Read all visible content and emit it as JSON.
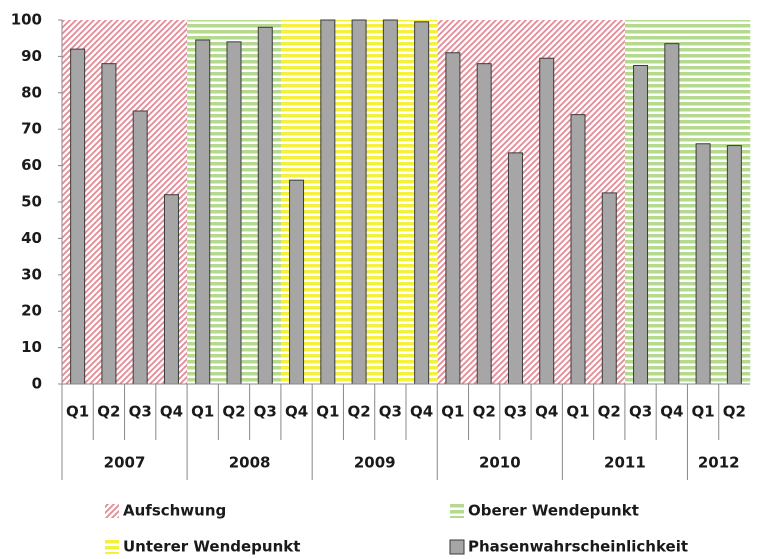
{
  "chart_data": {
    "type": "bar",
    "categories": [
      [
        "2007",
        "Q1"
      ],
      [
        "2007",
        "Q2"
      ],
      [
        "2007",
        "Q3"
      ],
      [
        "2007",
        "Q4"
      ],
      [
        "2008",
        "Q1"
      ],
      [
        "2008",
        "Q2"
      ],
      [
        "2008",
        "Q3"
      ],
      [
        "2008",
        "Q4"
      ],
      [
        "2009",
        "Q1"
      ],
      [
        "2009",
        "Q2"
      ],
      [
        "2009",
        "Q3"
      ],
      [
        "2009",
        "Q4"
      ],
      [
        "2010",
        "Q1"
      ],
      [
        "2010",
        "Q2"
      ],
      [
        "2010",
        "Q3"
      ],
      [
        "2010",
        "Q4"
      ],
      [
        "2011",
        "Q1"
      ],
      [
        "2011",
        "Q2"
      ],
      [
        "2011",
        "Q3"
      ],
      [
        "2011",
        "Q4"
      ],
      [
        "2012",
        "Q1"
      ],
      [
        "2012",
        "Q2"
      ]
    ],
    "series": [
      {
        "name": "Aufschwung",
        "color": "#e48a96",
        "hatch": "diagonal",
        "values": [
          100,
          100,
          100,
          100,
          null,
          null,
          null,
          null,
          null,
          null,
          null,
          null,
          100,
          100,
          100,
          100,
          100,
          100,
          null,
          null,
          null,
          null
        ]
      },
      {
        "name": "Oberer Wendepunkt",
        "color": "#b5d98f",
        "hatch": "horizontal",
        "values": [
          null,
          null,
          null,
          null,
          100,
          100,
          100,
          null,
          null,
          null,
          null,
          null,
          null,
          null,
          null,
          null,
          null,
          null,
          100,
          100,
          100,
          100
        ]
      },
      {
        "name": "Unterer Wendepunkt",
        "color": "#f5f03c",
        "hatch": "horizontal",
        "values": [
          null,
          null,
          null,
          null,
          null,
          null,
          null,
          100,
          100,
          100,
          100,
          100,
          null,
          null,
          null,
          null,
          null,
          null,
          null,
          null,
          null,
          null
        ]
      },
      {
        "name": "Phasenwahrscheinlichkeit",
        "color": "#a6a6a6",
        "hatch": "none",
        "values": [
          92,
          88,
          75,
          52,
          94.5,
          94,
          98,
          56,
          100,
          100,
          100,
          99.5,
          91,
          88,
          63.5,
          89.5,
          74,
          52.5,
          87.5,
          93.5,
          66,
          65.5
        ]
      }
    ],
    "ylim": [
      0,
      100
    ],
    "yticks": [
      0,
      10,
      20,
      30,
      40,
      50,
      60,
      70,
      80,
      90,
      100
    ]
  }
}
